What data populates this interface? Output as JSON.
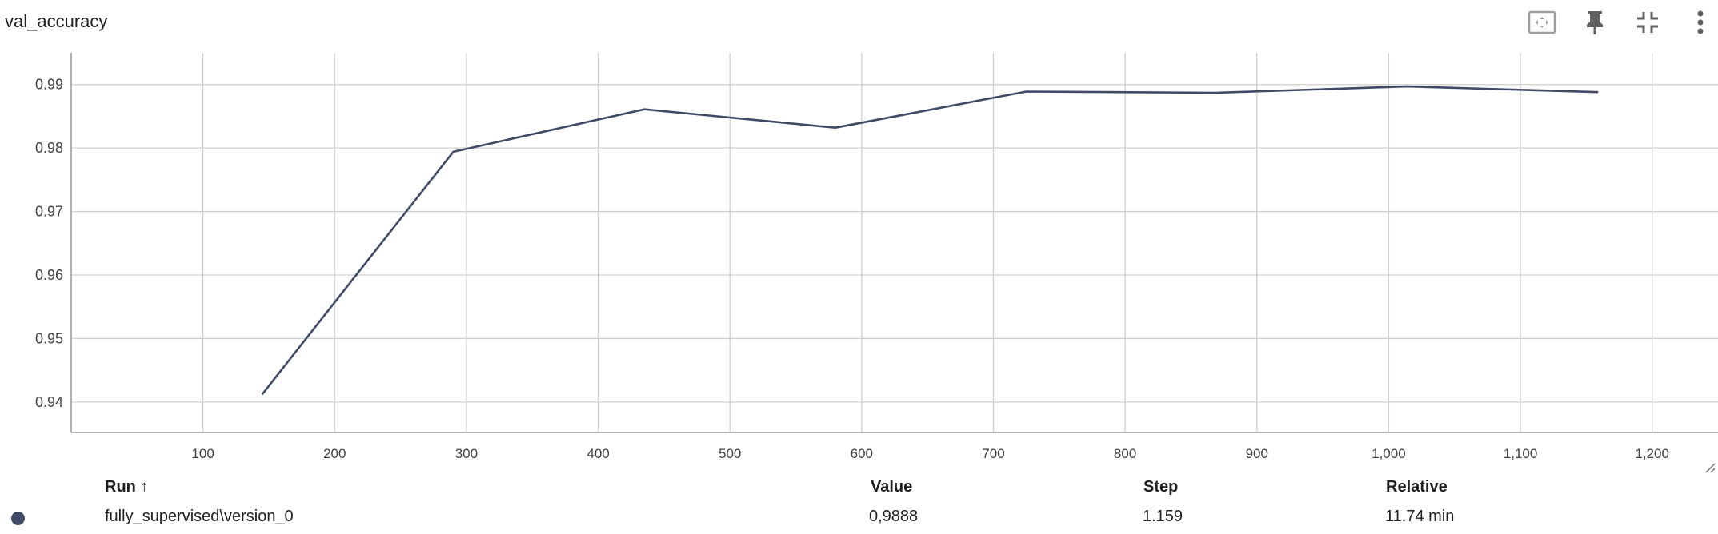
{
  "title": "val_accuracy",
  "toolbar": {
    "icons": [
      "fit-domain-icon",
      "pin-icon",
      "collapse-icon",
      "more-vert-icon"
    ]
  },
  "colors": {
    "series": "#3f4a66",
    "grid": "#cfcfcf",
    "axis": "#9e9e9e",
    "icon": "#616161"
  },
  "chart_data": {
    "type": "line",
    "title": "",
    "xlabel": "",
    "ylabel": "",
    "xlim": [
      0,
      1250
    ],
    "ylim": [
      0.9352,
      0.995
    ],
    "x_ticks": [
      100,
      200,
      300,
      400,
      500,
      600,
      700,
      800,
      900,
      1000,
      1100,
      1200
    ],
    "x_tick_labels": [
      "100",
      "200",
      "300",
      "400",
      "500",
      "600",
      "700",
      "800",
      "900",
      "1,000",
      "1,100",
      "1,200"
    ],
    "y_ticks": [
      0.94,
      0.95,
      0.96,
      0.97,
      0.98,
      0.99
    ],
    "y_tick_labels": [
      "0.94",
      "0.95",
      "0.96",
      "0.97",
      "0.98",
      "0.99"
    ],
    "grid": true,
    "series": [
      {
        "x": [
          145,
          290,
          435,
          580,
          725,
          869,
          1014,
          1159
        ],
        "y": [
          0.9412,
          0.9794,
          0.9861,
          0.9832,
          0.9889,
          0.9887,
          0.9897,
          0.9888
        ]
      }
    ]
  },
  "table": {
    "headers": {
      "run": "Run ↑",
      "value": "Value",
      "step": "Step",
      "relative": "Relative"
    },
    "rows": [
      {
        "run": "fully_supervised\\version_0",
        "value": "0,9888",
        "step": "1.159",
        "relative": "11.74 min"
      }
    ]
  }
}
